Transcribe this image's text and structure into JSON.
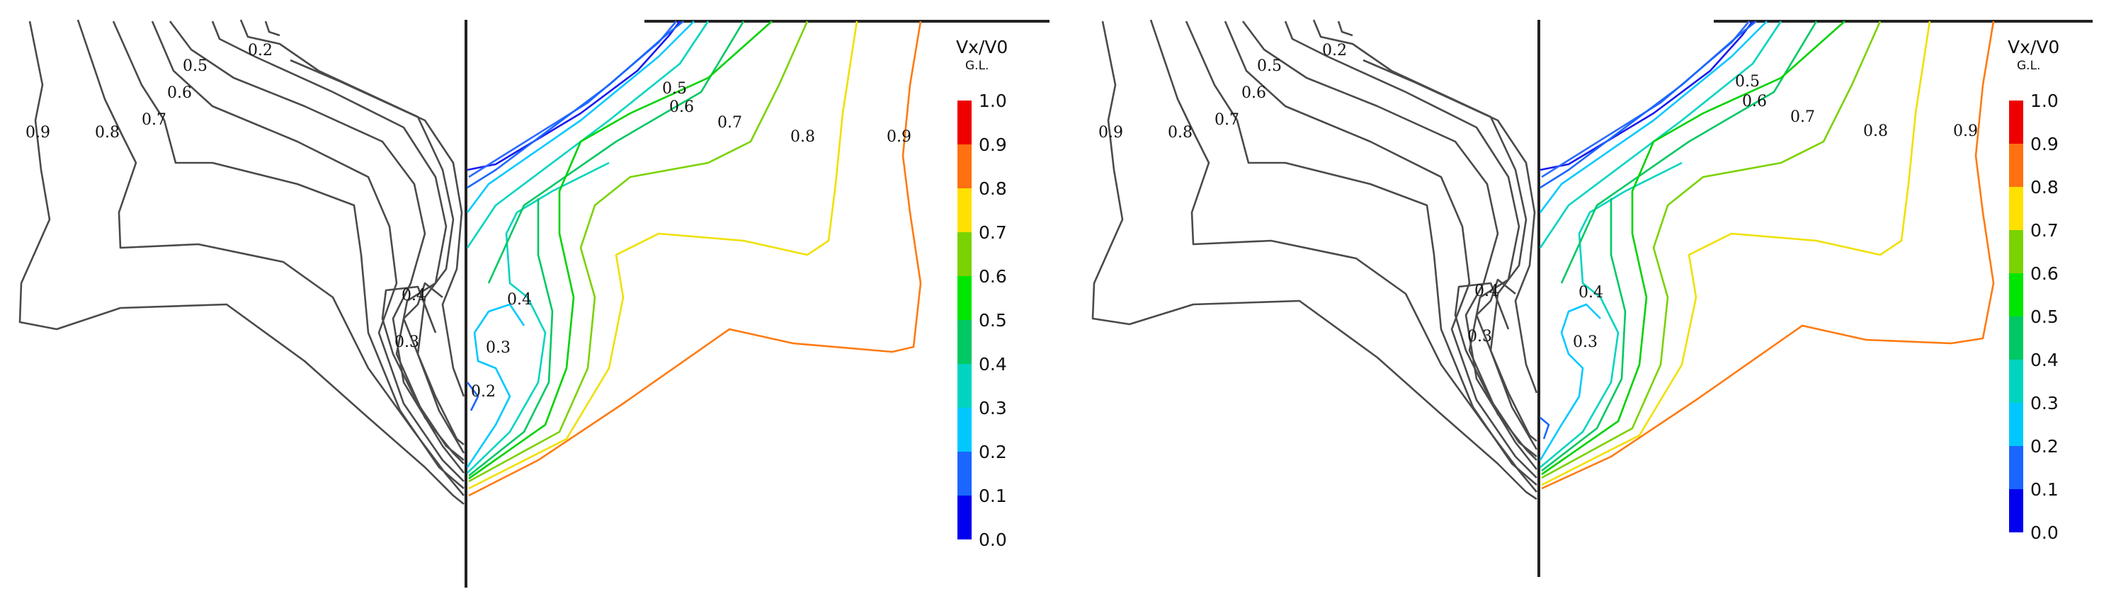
{
  "panels": [
    {
      "id": "left",
      "colorbar": {
        "title": "Vx/V0",
        "subtitle": "G.L.",
        "ticks": [
          "1.0",
          "0.9",
          "0.8",
          "0.7",
          "0.6",
          "0.5",
          "0.4",
          "0.3",
          "0.2",
          "0.1",
          "0.0"
        ]
      },
      "gray_labels": [
        "0.2",
        "0.5",
        "0.6",
        "0.7",
        "0.8",
        "0.9",
        "0.4",
        "0.3"
      ],
      "color_labels": [
        "0.5",
        "0.6",
        "0.7",
        "0.8",
        "0.9",
        "0.4",
        "0.3",
        "0.2"
      ]
    },
    {
      "id": "right",
      "colorbar": {
        "title": "Vx/V0",
        "subtitle": "G.L.",
        "ticks": [
          "1.0",
          "0.9",
          "0.8",
          "0.7",
          "0.6",
          "0.5",
          "0.4",
          "0.3",
          "0.2",
          "0.1",
          "0.0"
        ]
      },
      "gray_labels": [
        "0.2",
        "0.5",
        "0.6",
        "0.7",
        "0.8",
        "0.9",
        "0.4",
        "0.3"
      ],
      "color_labels": [
        "0.5",
        "0.6",
        "0.7",
        "0.8",
        "0.9",
        "0.4",
        "0.3"
      ]
    }
  ],
  "colors": {
    "gray": "#4a4a4a",
    "axis": "#222222",
    "levels": [
      "#0000ee",
      "#1a66ff",
      "#00c8ff",
      "#00d2a0",
      "#00d200",
      "#00e600",
      "#7ad200",
      "#ffe000",
      "#ff8800",
      "#ff7010",
      "#ee0000"
    ]
  }
}
